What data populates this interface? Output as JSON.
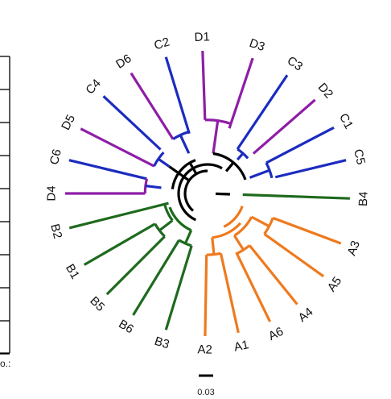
{
  "tree": {
    "leaves": [
      {
        "id": "D1",
        "label": "D1",
        "angle": -92.0,
        "color": "#8E1EA6",
        "inner": 0.68
      },
      {
        "id": "D3",
        "label": "D3",
        "angle": -71.5,
        "color": "#8E1EA6",
        "inner": 0.6
      },
      {
        "id": "C3",
        "label": "C3",
        "angle": -56.0,
        "color": "#1C2CC0",
        "inner": 0.35
      },
      {
        "id": "D2",
        "label": "D2",
        "angle": -41.0,
        "color": "#8E1EA6",
        "inner": 0.47
      },
      {
        "id": "C1",
        "label": "C1",
        "angle": -27.5,
        "color": "#1C2CC0",
        "inner": 0.56
      },
      {
        "id": "C5",
        "label": "C5",
        "angle": -13.5,
        "color": "#1C2CC0",
        "inner": 0.62
      },
      {
        "id": "B4",
        "label": "B4",
        "angle": 2.0,
        "color": "#1E6A1E",
        "inner": 0.05
      },
      {
        "id": "A3",
        "label": "A3",
        "angle": 20.5,
        "color": "#EE7A1E",
        "inner": 0.62
      },
      {
        "id": "A5",
        "label": "A5",
        "angle": 35.5,
        "color": "#EE7A1E",
        "inner": 0.62
      },
      {
        "id": "A4",
        "label": "A4",
        "angle": 51.0,
        "color": "#EE7A1E",
        "inner": 0.57
      },
      {
        "id": "A6",
        "label": "A6",
        "angle": 64.0,
        "color": "#EE7A1E",
        "inner": 0.55
      },
      {
        "id": "A1",
        "label": "A1",
        "angle": 77.5,
        "color": "#EE7A1E",
        "inner": 0.48
      },
      {
        "id": "A2",
        "label": "A2",
        "angle": 91.0,
        "color": "#EE7A1E",
        "inner": 0.48
      },
      {
        "id": "B3",
        "label": "B3",
        "angle": 107.0,
        "color": "#1E6A1E",
        "inner": 0.37
      },
      {
        "id": "B6",
        "label": "B6",
        "angle": 121.5,
        "color": "#1E6A1E",
        "inner": 0.37
      },
      {
        "id": "B5",
        "label": "B5",
        "angle": 135.0,
        "color": "#1E6A1E",
        "inner": 0.47
      },
      {
        "id": "B1",
        "label": "B1",
        "angle": 150.0,
        "color": "#1E6A1E",
        "inner": 0.47
      },
      {
        "id": "B2",
        "label": "B2",
        "angle": 166.0,
        "color": "#1E6A1E",
        "inner": 0.45
      },
      {
        "id": "D4",
        "label": "D4",
        "angle": 180.0,
        "color": "#8E1EA6",
        "inner": 0.5
      },
      {
        "id": "C6",
        "label": "C6",
        "angle": 193.5,
        "color": "#1C2CC0",
        "inner": 0.5
      },
      {
        "id": "D5",
        "label": "D5",
        "angle": 207.0,
        "color": "#8E1EA6",
        "inner": 0.46
      },
      {
        "id": "C4",
        "label": "C4",
        "angle": 223.0,
        "color": "#1C2CC0",
        "inner": 0.53
      },
      {
        "id": "D6",
        "label": "D6",
        "angle": 237.5,
        "color": "#8E1EA6",
        "inner": 0.53
      },
      {
        "id": "C2",
        "label": "C2",
        "angle": 253.0,
        "color": "#1C2CC0",
        "inner": 0.5
      }
    ],
    "scale_bar": {
      "value": 0.03,
      "label": "0.03"
    }
  },
  "side_axis": {
    "fragment_label": "o.:"
  },
  "colors": {
    "group_A": "#EE7A1E",
    "group_B": "#1E6A1E",
    "group_C": "#1C2CC0",
    "group_D": "#8E1EA6",
    "backbone": "#000000"
  }
}
